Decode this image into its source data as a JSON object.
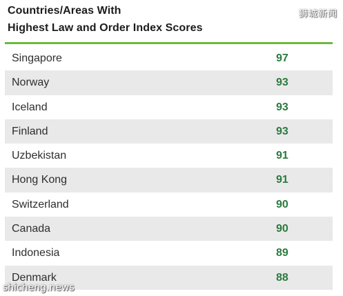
{
  "chart_data": {
    "type": "table",
    "title_line1": "Countries/Areas With",
    "title_line2": "Highest Law and Order Index Scores",
    "rows": [
      {
        "country": "Singapore",
        "score": 97
      },
      {
        "country": "Norway",
        "score": 93
      },
      {
        "country": "Iceland",
        "score": 93
      },
      {
        "country": "Finland",
        "score": 93
      },
      {
        "country": "Uzbekistan",
        "score": 91
      },
      {
        "country": "Hong Kong",
        "score": 91
      },
      {
        "country": "Switzerland",
        "score": 90
      },
      {
        "country": "Canada",
        "score": 90
      },
      {
        "country": "Indonesia",
        "score": 89
      },
      {
        "country": "Denmark",
        "score": 88
      }
    ]
  },
  "watermarks": {
    "top_right": "狮城新闻",
    "bottom_left": "shicheng.news"
  },
  "colors": {
    "accent_rule": "#6aba3a",
    "score_text": "#2b7a3e",
    "shaded_row": "#e9e9e9"
  }
}
